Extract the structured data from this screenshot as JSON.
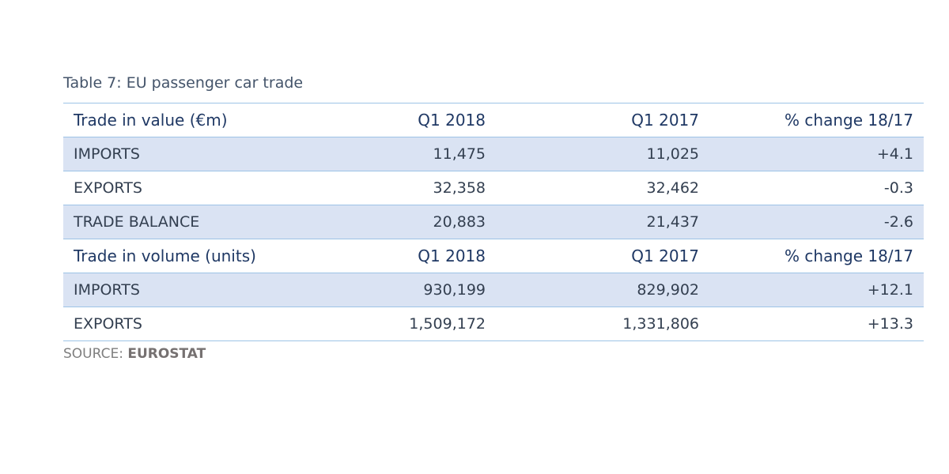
{
  "title": "Table 7: EU passenger car trade",
  "table": {
    "sections": [
      {
        "header": [
          "Trade in value (€m)",
          "Q1 2018",
          "Q1 2017",
          "% change 18/17"
        ],
        "rows": [
          [
            "IMPORTS",
            "11,475",
            "11,025",
            "+4.1"
          ],
          [
            "EXPORTS",
            "32,358",
            "32,462",
            "-0.3"
          ],
          [
            "TRADE BALANCE",
            "20,883",
            "21,437",
            "-2.6"
          ]
        ]
      },
      {
        "header": [
          "Trade in volume (units)",
          "Q1 2018",
          "Q1 2017",
          "% change 18/17"
        ],
        "rows": [
          [
            "IMPORTS",
            "930,199",
            "829,902",
            "+12.1"
          ],
          [
            "EXPORTS",
            "1,509,172",
            "1,331,806",
            "+13.3"
          ]
        ]
      }
    ]
  },
  "source": {
    "label": "SOURCE:",
    "name": "EUROSTAT"
  }
}
